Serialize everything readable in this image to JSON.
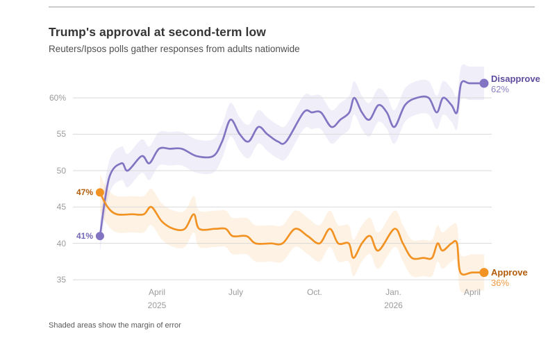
{
  "header": {
    "title": "Trump's approval at second-term low",
    "subtitle": "Reuters/Ipsos polls gather responses from adults nationwide"
  },
  "note": "Shaded areas show the margin of error",
  "chart_data": {
    "type": "line",
    "x_unit": "months_since_2025-01-01",
    "xlim": [
      0.4,
      15.9
    ],
    "ylim": [
      33,
      65
    ],
    "grid": "horizontal",
    "y_ticks": [
      {
        "value": 60,
        "label": "60%"
      },
      {
        "value": 55,
        "label": "55"
      },
      {
        "value": 50,
        "label": "50"
      },
      {
        "value": 45,
        "label": "45"
      },
      {
        "value": 40,
        "label": "40"
      },
      {
        "value": 35,
        "label": "35"
      }
    ],
    "x_ticks": [
      {
        "t": 3,
        "label": "April",
        "sublabel": "2025"
      },
      {
        "t": 6,
        "label": "July",
        "sublabel": ""
      },
      {
        "t": 9,
        "label": "Oct.",
        "sublabel": ""
      },
      {
        "t": 12,
        "label": "Jan.",
        "sublabel": "2026"
      },
      {
        "t": 15,
        "label": "April",
        "sublabel": ""
      }
    ],
    "series": [
      {
        "name": "Disapprove",
        "end_label": "Disapprove",
        "end_value_label": "62%",
        "start_value_label": "41%",
        "color": "#8374c3",
        "label_color": "#5f4b9e",
        "value_color": "#8d80c5",
        "start_label_color": "#7668b5",
        "band_opacity": 0.12,
        "margin_of_error": 2.3,
        "points": [
          [
            0.83,
            41
          ],
          [
            1.18,
            49
          ],
          [
            1.65,
            51
          ],
          [
            1.89,
            50
          ],
          [
            2.42,
            52
          ],
          [
            2.71,
            51
          ],
          [
            3.08,
            53
          ],
          [
            3.5,
            53
          ],
          [
            3.95,
            53
          ],
          [
            4.51,
            52
          ],
          [
            5.14,
            52
          ],
          [
            5.48,
            54
          ],
          [
            5.8,
            57
          ],
          [
            6.15,
            55
          ],
          [
            6.49,
            54
          ],
          [
            6.86,
            56
          ],
          [
            7.2,
            55
          ],
          [
            7.6,
            54
          ],
          [
            7.92,
            54
          ],
          [
            8.58,
            58
          ],
          [
            8.9,
            58
          ],
          [
            9.24,
            58
          ],
          [
            9.64,
            56
          ],
          [
            9.98,
            57
          ],
          [
            10.32,
            58
          ],
          [
            10.51,
            60
          ],
          [
            10.8,
            58
          ],
          [
            11.09,
            57
          ],
          [
            11.43,
            59
          ],
          [
            11.75,
            58
          ],
          [
            12.04,
            56
          ],
          [
            12.44,
            59
          ],
          [
            12.89,
            60
          ],
          [
            13.34,
            60
          ],
          [
            13.65,
            58
          ],
          [
            13.89,
            60
          ],
          [
            14.21,
            59
          ],
          [
            14.42,
            58
          ],
          [
            14.58,
            62
          ],
          [
            14.9,
            62
          ],
          [
            15.45,
            62
          ]
        ]
      },
      {
        "name": "Approve",
        "end_label": "Approve",
        "end_value_label": "36%",
        "start_value_label": "47%",
        "color": "#f29222",
        "label_color": "#b35c0a",
        "value_color": "#f19a3e",
        "start_label_color": "#b35c0a",
        "band_opacity": 0.12,
        "margin_of_error": 2.5,
        "points": [
          [
            0.83,
            47
          ],
          [
            1.12,
            45
          ],
          [
            1.47,
            44
          ],
          [
            2.05,
            44
          ],
          [
            2.5,
            44
          ],
          [
            2.79,
            45
          ],
          [
            3.19,
            43
          ],
          [
            3.63,
            42
          ],
          [
            4.06,
            42
          ],
          [
            4.4,
            44
          ],
          [
            4.61,
            42
          ],
          [
            5.22,
            42
          ],
          [
            5.62,
            42
          ],
          [
            5.88,
            41
          ],
          [
            6.41,
            41
          ],
          [
            6.75,
            40
          ],
          [
            7.34,
            40
          ],
          [
            7.78,
            40
          ],
          [
            8.26,
            42
          ],
          [
            8.74,
            41
          ],
          [
            9.19,
            40
          ],
          [
            9.58,
            42
          ],
          [
            9.9,
            40
          ],
          [
            10.3,
            40
          ],
          [
            10.48,
            38
          ],
          [
            10.8,
            40
          ],
          [
            11.12,
            41
          ],
          [
            11.43,
            39
          ],
          [
            12.04,
            42
          ],
          [
            12.36,
            40
          ],
          [
            12.7,
            38
          ],
          [
            13.15,
            38
          ],
          [
            13.47,
            38
          ],
          [
            13.68,
            40
          ],
          [
            13.87,
            39
          ],
          [
            14.21,
            40
          ],
          [
            14.42,
            40
          ],
          [
            14.55,
            36
          ],
          [
            15.0,
            36
          ],
          [
            15.45,
            36
          ]
        ]
      }
    ]
  }
}
